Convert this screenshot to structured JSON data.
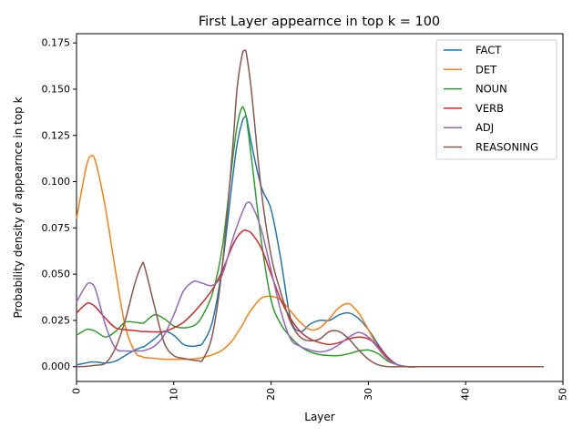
{
  "chart_data": {
    "type": "line",
    "title": "First Layer appearnce in top k = 100",
    "xlabel": "Layer",
    "ylabel": "Probability density of appearnce in top k",
    "xlim": [
      0,
      50
    ],
    "ylim": [
      -0.008,
      0.18
    ],
    "xticks": [
      "0",
      "10",
      "20",
      "30",
      "40",
      "50"
    ],
    "xtick_values": [
      0,
      10,
      20,
      30,
      40,
      50
    ],
    "yticks": [
      "0.000",
      "0.025",
      "0.050",
      "0.075",
      "0.100",
      "0.125",
      "0.150",
      "0.175"
    ],
    "ytick_values": [
      0,
      0.025,
      0.05,
      0.075,
      0.1,
      0.125,
      0.15,
      0.175
    ],
    "grid": false,
    "legend_position": "top-right",
    "x": [
      0,
      1,
      1.5,
      2,
      3,
      4,
      5,
      6,
      6.7,
      7,
      8,
      9,
      10,
      11,
      12,
      12.5,
      13,
      14,
      15,
      16,
      16.5,
      17,
      17.3,
      17.5,
      18,
      19,
      20,
      21,
      22,
      23,
      24,
      25,
      26,
      27,
      28,
      29,
      30,
      31,
      32,
      33,
      34,
      35,
      36,
      40,
      44,
      46,
      48
    ],
    "series": [
      {
        "name": "FACT",
        "color": "#1f77b4",
        "values": [
          0.001,
          0.002,
          0.0025,
          0.0025,
          0.002,
          0.003,
          0.006,
          0.009,
          0.0105,
          0.011,
          0.015,
          0.019,
          0.017,
          0.012,
          0.011,
          0.0115,
          0.013,
          0.025,
          0.055,
          0.1,
          0.12,
          0.132,
          0.135,
          0.134,
          0.12,
          0.097,
          0.085,
          0.058,
          0.026,
          0.019,
          0.023,
          0.025,
          0.025,
          0.028,
          0.029,
          0.026,
          0.02,
          0.012,
          0.005,
          0.001,
          0,
          0,
          0,
          0,
          0,
          0,
          0
        ]
      },
      {
        "name": "DET",
        "color": "#ff7f0e",
        "values": [
          0.08,
          0.108,
          0.114,
          0.11,
          0.085,
          0.052,
          0.022,
          0.008,
          0.0055,
          0.005,
          0.0045,
          0.004,
          0.004,
          0.004,
          0.0042,
          0.0045,
          0.005,
          0.0065,
          0.009,
          0.014,
          0.018,
          0.022,
          0.025,
          0.027,
          0.031,
          0.037,
          0.038,
          0.036,
          0.03,
          0.024,
          0.02,
          0.021,
          0.026,
          0.032,
          0.034,
          0.029,
          0.02,
          0.01,
          0.004,
          0.001,
          0,
          0,
          0,
          0,
          0,
          0,
          0
        ]
      },
      {
        "name": "NOUN",
        "color": "#2ca02c",
        "values": [
          0.017,
          0.02,
          0.02,
          0.019,
          0.016,
          0.019,
          0.024,
          0.024,
          0.0235,
          0.024,
          0.028,
          0.026,
          0.022,
          0.021,
          0.022,
          0.024,
          0.028,
          0.04,
          0.065,
          0.11,
          0.13,
          0.14,
          0.138,
          0.133,
          0.112,
          0.068,
          0.036,
          0.023,
          0.016,
          0.011,
          0.008,
          0.0065,
          0.006,
          0.006,
          0.007,
          0.0085,
          0.009,
          0.007,
          0.003,
          0.001,
          0,
          0,
          0,
          0,
          0,
          0,
          0
        ]
      },
      {
        "name": "VERB",
        "color": "#d62728",
        "values": [
          0.029,
          0.034,
          0.034,
          0.032,
          0.026,
          0.021,
          0.02,
          0.0195,
          0.019,
          0.019,
          0.0188,
          0.019,
          0.021,
          0.024,
          0.029,
          0.032,
          0.035,
          0.042,
          0.052,
          0.065,
          0.07,
          0.073,
          0.0738,
          0.0735,
          0.072,
          0.064,
          0.05,
          0.036,
          0.026,
          0.019,
          0.015,
          0.013,
          0.012,
          0.013,
          0.015,
          0.016,
          0.015,
          0.011,
          0.005,
          0.001,
          0,
          0,
          0,
          0,
          0,
          0,
          0
        ]
      },
      {
        "name": "ADJ",
        "color": "#9467bd",
        "values": [
          0.035,
          0.044,
          0.045,
          0.041,
          0.022,
          0.01,
          0.0085,
          0.0085,
          0.0085,
          0.0088,
          0.011,
          0.017,
          0.028,
          0.041,
          0.046,
          0.0458,
          0.045,
          0.044,
          0.05,
          0.068,
          0.076,
          0.083,
          0.0865,
          0.0885,
          0.0875,
          0.074,
          0.052,
          0.03,
          0.015,
          0.011,
          0.009,
          0.008,
          0.009,
          0.012,
          0.016,
          0.0185,
          0.016,
          0.01,
          0.004,
          0.001,
          0,
          0,
          0,
          0,
          0,
          0,
          0
        ]
      },
      {
        "name": "REASONING",
        "color": "#8c564b",
        "values": [
          0,
          0.0002,
          0.0005,
          0.0008,
          0.002,
          0.01,
          0.025,
          0.045,
          0.055,
          0.054,
          0.033,
          0.013,
          0.006,
          0.0045,
          0.0035,
          0.0033,
          0.004,
          0.018,
          0.055,
          0.115,
          0.15,
          0.168,
          0.171,
          0.168,
          0.148,
          0.095,
          0.06,
          0.04,
          0.024,
          0.016,
          0.014,
          0.015,
          0.019,
          0.019,
          0.015,
          0.009,
          0.004,
          0.001,
          0,
          0,
          0,
          0,
          0,
          0,
          0,
          0,
          0
        ]
      }
    ]
  }
}
